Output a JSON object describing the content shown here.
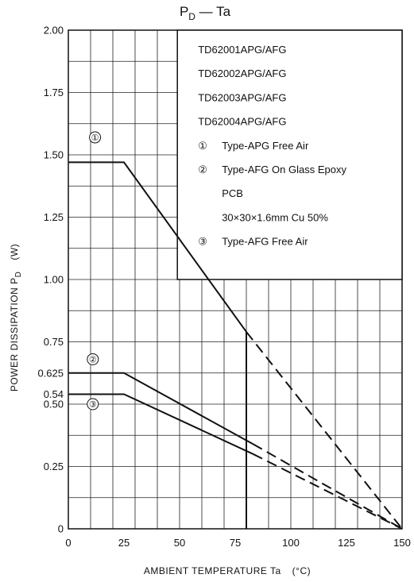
{
  "chart_data": {
    "type": "line",
    "title": {
      "main": "P",
      "sub": "D",
      "rest": " — Ta"
    },
    "xlabel": {
      "text": "AMBIENT TEMPERATURE  Ta",
      "unit": "(°C)"
    },
    "ylabel": {
      "text": "POWER DISSIPATION  P",
      "sub": "D",
      "unit": "(W)"
    },
    "xlim": [
      0,
      150
    ],
    "ylim": [
      0,
      2.0
    ],
    "x_ticks": [
      0,
      25,
      50,
      75,
      100,
      125,
      150
    ],
    "y_tick_labels": [
      {
        "value": 0,
        "label": "0"
      },
      {
        "value": 0.25,
        "label": "0.25"
      },
      {
        "value": 0.5,
        "label": "0.50"
      },
      {
        "value": 0.54,
        "label": "0.54"
      },
      {
        "value": 0.625,
        "label": "0.625"
      },
      {
        "value": 0.75,
        "label": "0.75"
      },
      {
        "value": 1.0,
        "label": "1.00"
      },
      {
        "value": 1.25,
        "label": "1.25"
      },
      {
        "value": 1.5,
        "label": "1.50"
      },
      {
        "value": 1.75,
        "label": "1.75"
      },
      {
        "value": 2.0,
        "label": "2.00"
      }
    ],
    "grid": true,
    "grid_x_step": 10,
    "grid_y_step": 0.125,
    "series": [
      {
        "marker": "①",
        "label_at": [
          12,
          1.57
        ],
        "solid": [
          [
            0,
            1.47
          ],
          [
            25,
            1.47
          ],
          [
            80,
            0.79
          ]
        ],
        "dashed": [
          [
            80,
            0.79
          ],
          [
            150,
            0
          ]
        ],
        "drop_to_axis_at_x": 80
      },
      {
        "marker": "②",
        "label_at": [
          11,
          0.68
        ],
        "solid": [
          [
            0,
            0.625
          ],
          [
            25,
            0.625
          ],
          [
            83,
            0.34
          ]
        ],
        "dashed": [
          [
            83,
            0.34
          ],
          [
            150,
            0
          ]
        ]
      },
      {
        "marker": "③",
        "label_at": [
          11,
          0.5
        ],
        "solid": [
          [
            0,
            0.54
          ],
          [
            25,
            0.54
          ],
          [
            83,
            0.3
          ]
        ],
        "dashed": [
          [
            83,
            0.3
          ],
          [
            150,
            0
          ]
        ]
      }
    ],
    "legend": {
      "placement": "top-right",
      "lines": [
        {
          "marker": "",
          "text": "TD62001APG/AFG"
        },
        {
          "marker": "",
          "text": "TD62002APG/AFG"
        },
        {
          "marker": "",
          "text": "TD62003APG/AFG"
        },
        {
          "marker": "",
          "text": "TD62004APG/AFG"
        },
        {
          "marker": "①",
          "text": "Type-APG Free Air"
        },
        {
          "marker": "②",
          "text": "Type-AFG On Glass Epoxy"
        },
        {
          "marker": "",
          "text": "PCB"
        },
        {
          "marker": "",
          "text": "30×30×1.6mm Cu 50%"
        },
        {
          "marker": "③",
          "text": "Type-AFG Free Air"
        }
      ]
    }
  }
}
